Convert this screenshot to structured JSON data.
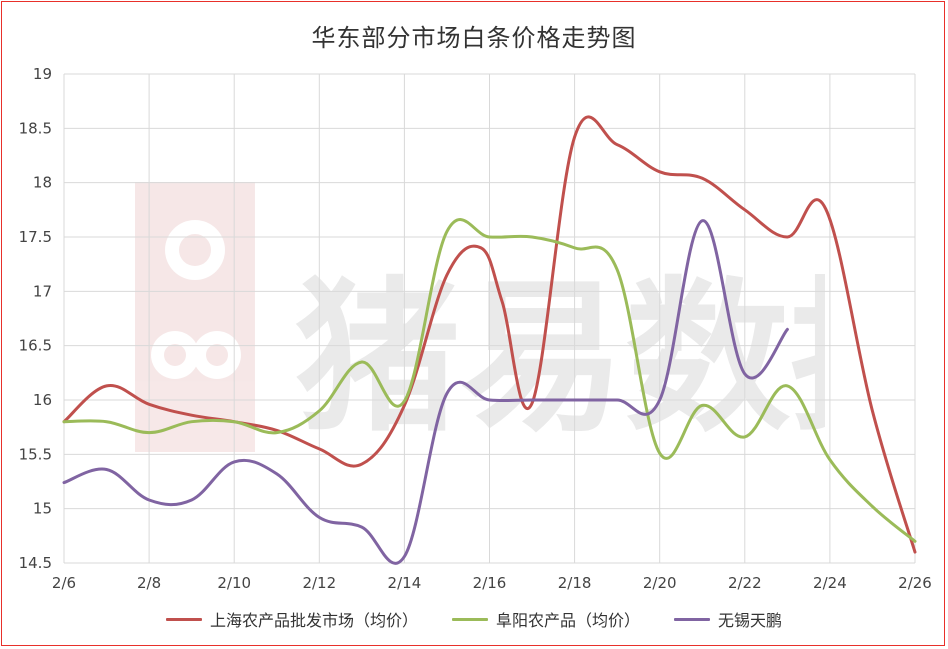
{
  "chart_data": {
    "type": "line",
    "title": "华东部分市场白条价格走势图",
    "xlabel": "",
    "ylabel": "",
    "ylim": [
      14.5,
      19
    ],
    "yticks": [
      "14.5",
      "15",
      "15.5",
      "16",
      "16.5",
      "17",
      "17.5",
      "18",
      "18.5",
      "19"
    ],
    "xlim": [
      6,
      26
    ],
    "x_tick_labels": [
      "2/6",
      "2/8",
      "2/10",
      "2/12",
      "2/14",
      "2/16",
      "2/18",
      "2/20",
      "2/22",
      "2/24",
      "2/26"
    ],
    "grid": true,
    "legend_position": "bottom",
    "series": [
      {
        "name": "上海农产品批发市场（均价）",
        "color": "#c0504d",
        "points": [
          [
            6,
            15.8
          ],
          [
            7,
            16.13
          ],
          [
            8,
            15.96
          ],
          [
            9,
            15.86
          ],
          [
            10,
            15.8
          ],
          [
            11,
            15.72
          ],
          [
            12,
            15.55
          ],
          [
            13,
            15.41
          ],
          [
            14,
            15.95
          ],
          [
            15,
            17.15
          ],
          [
            15.8,
            17.4
          ],
          [
            16.3,
            16.9
          ],
          [
            17,
            15.97
          ],
          [
            18,
            18.42
          ],
          [
            19,
            18.35
          ],
          [
            20,
            18.1
          ],
          [
            21,
            18.04
          ],
          [
            22,
            17.75
          ],
          [
            23,
            17.5
          ],
          [
            23.9,
            17.76
          ],
          [
            25,
            15.9
          ],
          [
            26,
            14.6
          ]
        ]
      },
      {
        "name": "阜阳农产品（均价）",
        "color": "#9bbb59",
        "points": [
          [
            6,
            15.8
          ],
          [
            7,
            15.8
          ],
          [
            8,
            15.7
          ],
          [
            9,
            15.8
          ],
          [
            10,
            15.8
          ],
          [
            11,
            15.7
          ],
          [
            12,
            15.9
          ],
          [
            13,
            16.35
          ],
          [
            14,
            15.99
          ],
          [
            15,
            17.55
          ],
          [
            16,
            17.5
          ],
          [
            17,
            17.5
          ],
          [
            18,
            17.4
          ],
          [
            19,
            17.2
          ],
          [
            20,
            15.51
          ],
          [
            21,
            15.95
          ],
          [
            22,
            15.66
          ],
          [
            23,
            16.13
          ],
          [
            24,
            15.45
          ],
          [
            25,
            15.02
          ],
          [
            26,
            14.7
          ]
        ]
      },
      {
        "name": "无锡天鹏",
        "color": "#8064a2",
        "points": [
          [
            6,
            15.24
          ],
          [
            7,
            15.36
          ],
          [
            8,
            15.08
          ],
          [
            9,
            15.08
          ],
          [
            10,
            15.43
          ],
          [
            11,
            15.32
          ],
          [
            12,
            14.92
          ],
          [
            13,
            14.83
          ],
          [
            14,
            14.56
          ],
          [
            15,
            16.06
          ],
          [
            16,
            16
          ],
          [
            17,
            16
          ],
          [
            18,
            16
          ],
          [
            19,
            16
          ],
          [
            20,
            16
          ],
          [
            21,
            17.65
          ],
          [
            22,
            16.24
          ],
          [
            23,
            16.65
          ]
        ]
      }
    ]
  },
  "watermark": {
    "text": "猪易数据"
  }
}
